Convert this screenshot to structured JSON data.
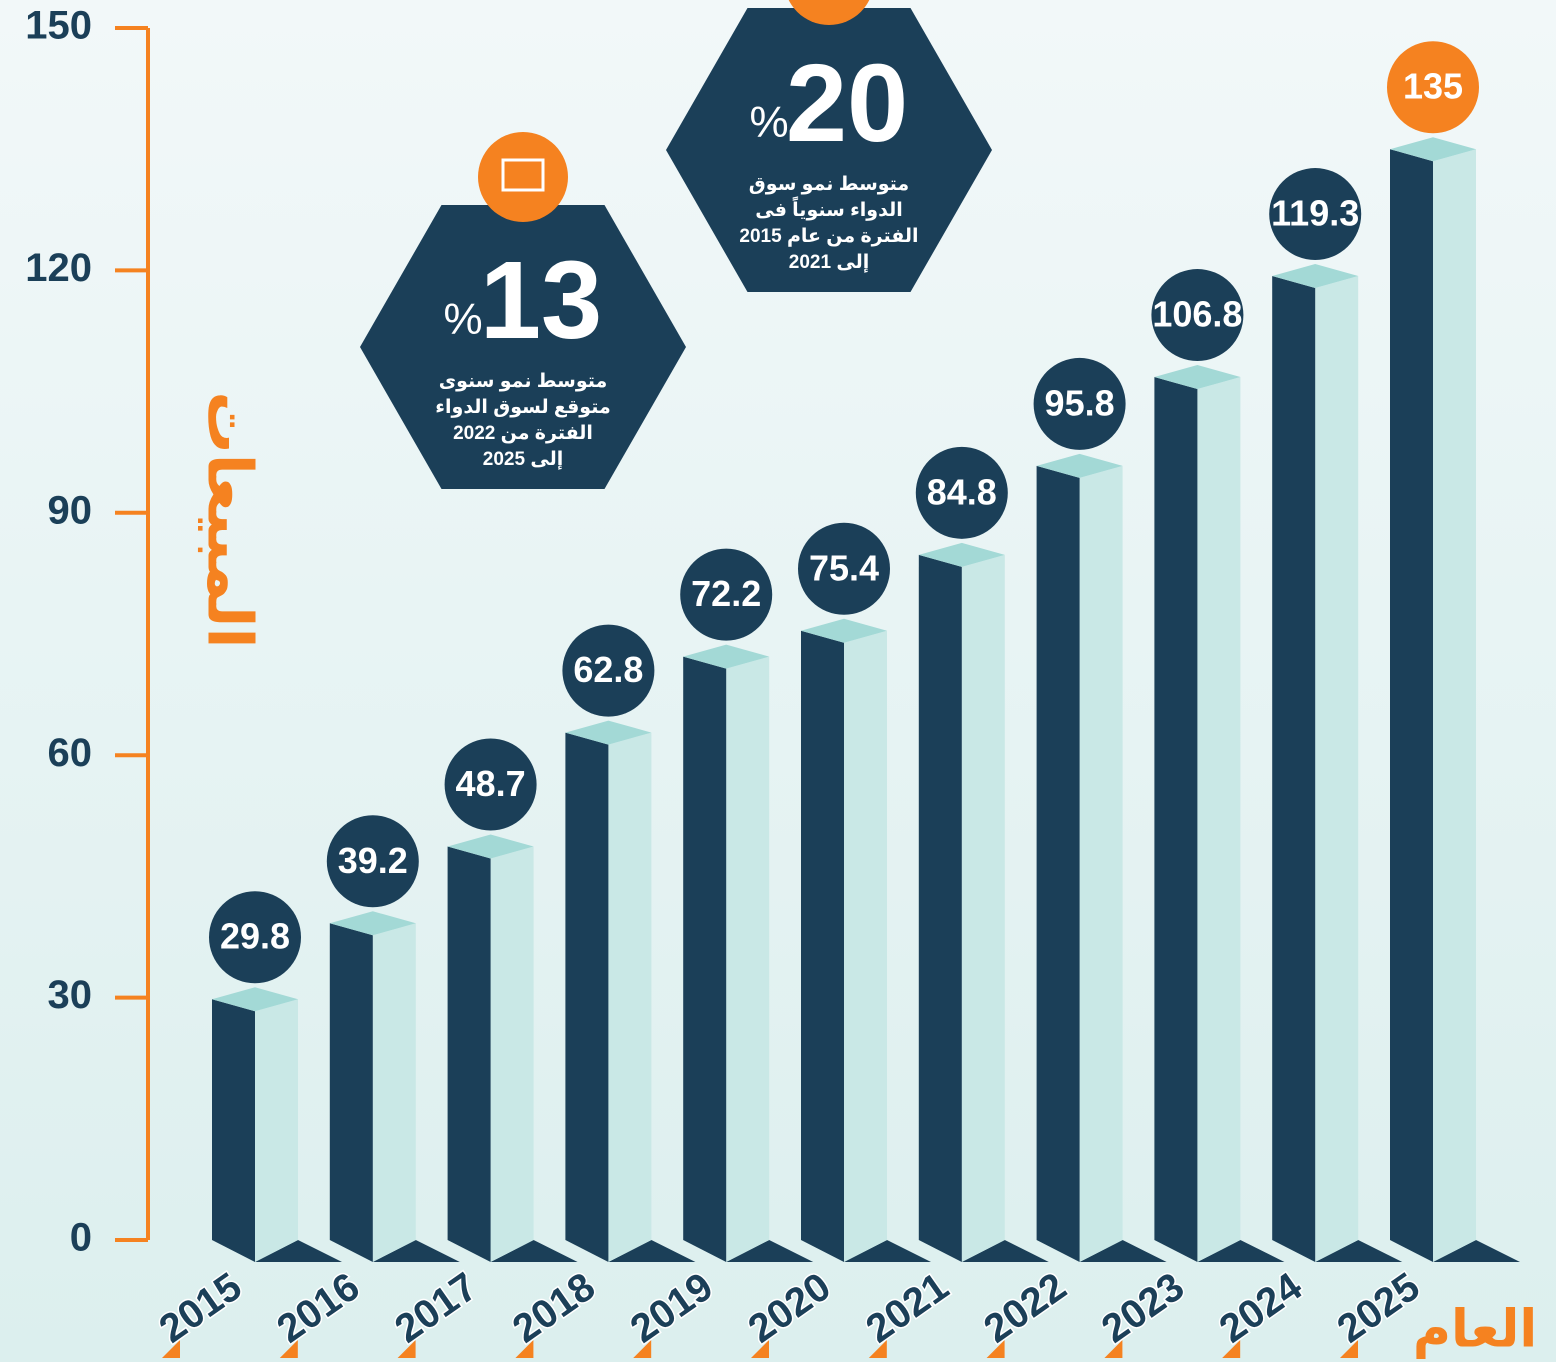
{
  "chart_data": {
    "type": "bar",
    "y_label": "المبيعات",
    "x_label": "العام",
    "categories": [
      "2015",
      "2016",
      "2017",
      "2018",
      "2019",
      "2020",
      "2021",
      "2022",
      "2023",
      "2024",
      "2025"
    ],
    "values": [
      29.8,
      39.2,
      48.7,
      62.8,
      72.2,
      75.4,
      84.8,
      95.8,
      106.8,
      119.3,
      135
    ],
    "color": "#1b3f58",
    "side_color": "#c9e8e6",
    "top_color": "#a3d9d6",
    "highlight_color": "#f58220",
    "ylim": [
      0,
      150
    ],
    "yticks": [
      0,
      30,
      60,
      90,
      120,
      150
    ],
    "annotations": [
      {
        "number": 13,
        "unit": "%",
        "lines": [
          "متوسط نمو سنوى",
          "متوقع لسوق الدواء",
          "الفترة من 2022",
          "إلى 2025"
        ]
      },
      {
        "number": 20,
        "unit": "%",
        "lines": [
          "متوسط نمو سوق",
          "الدواء سنوياً فى",
          "الفترة من عام 2015",
          "إلى 2021"
        ]
      }
    ]
  }
}
